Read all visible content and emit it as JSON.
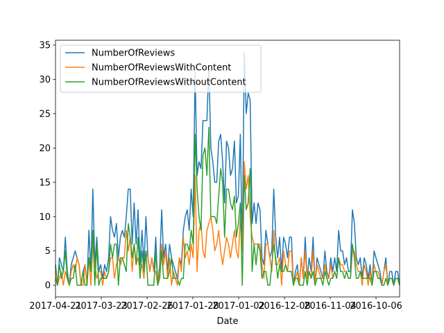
{
  "chart_data": {
    "type": "line",
    "xlabel": "Date",
    "ylabel": "",
    "title": "",
    "x_reversed": true,
    "xticks": [
      "2017-04-21",
      "2017-03-23",
      "2017-02-26",
      "2017-01-28",
      "2017-01-02",
      "2016-12-08",
      "2016-11-04",
      "2016-10-06"
    ],
    "ylim": [
      -1.7,
      35.7
    ],
    "yticks": [
      0,
      5,
      10,
      15,
      20,
      25,
      30,
      35
    ],
    "grid": false,
    "legend": "top-left",
    "series": [
      {
        "name": "NumberOfReviews",
        "color": "#1f77b4",
        "values": [
          3,
          0,
          4,
          3,
          2,
          7,
          2,
          0,
          3,
          4,
          5,
          4,
          3,
          0,
          2,
          3,
          0,
          8,
          2,
          14,
          3,
          7,
          2,
          3,
          1,
          3,
          2,
          4,
          10,
          8,
          7,
          9,
          4,
          7,
          8,
          7,
          10,
          14,
          14,
          6,
          12,
          6,
          11,
          3,
          8,
          3,
          10,
          4,
          2,
          4,
          2,
          7,
          0,
          3,
          11,
          4,
          6,
          2,
          6,
          4,
          3,
          2,
          1,
          4,
          3,
          8,
          10,
          11,
          8,
          14,
          10,
          31,
          16,
          18,
          17,
          24,
          24,
          24,
          32,
          20,
          18,
          15,
          15,
          21,
          22,
          18,
          12,
          21,
          20,
          16,
          17,
          21,
          12,
          13,
          22,
          5,
          34,
          25,
          28,
          27,
          9,
          12,
          9,
          12,
          11,
          4,
          3,
          8,
          6,
          4,
          5,
          14,
          7,
          4,
          7,
          2,
          7,
          6,
          4,
          7,
          7,
          0,
          2,
          3,
          0,
          4,
          1,
          7,
          1,
          4,
          2,
          7,
          0,
          4,
          3,
          2,
          1,
          5,
          2,
          1,
          4,
          2,
          4,
          2,
          8,
          5,
          5,
          3,
          4,
          2,
          2,
          11,
          9,
          4,
          3,
          4,
          1,
          4,
          3,
          1,
          3,
          0,
          5,
          4,
          3,
          2,
          0,
          2,
          4,
          0,
          2,
          2,
          0,
          2,
          2,
          0
        ]
      },
      {
        "name": "NumberOfReviewsWithContent",
        "color": "#ff7f0e",
        "values": [
          2,
          0,
          1,
          2,
          0,
          2,
          1,
          0,
          2,
          3,
          2,
          4,
          3,
          0,
          0,
          3,
          0,
          4,
          0,
          6,
          3,
          1,
          2,
          2,
          0,
          2,
          1,
          2,
          4,
          4,
          1,
          3,
          4,
          3,
          4,
          4,
          8,
          5,
          7,
          2,
          6,
          3,
          4,
          2,
          3,
          1,
          5,
          4,
          2,
          4,
          2,
          2,
          0,
          2,
          6,
          3,
          5,
          1,
          4,
          0,
          2,
          1,
          0,
          4,
          2,
          7,
          4,
          5,
          3,
          6,
          4,
          16,
          2,
          8,
          9,
          5,
          4,
          8,
          9,
          10,
          8,
          5,
          6,
          8,
          5,
          3,
          5,
          7,
          6,
          4,
          6,
          8,
          5,
          4,
          10,
          5,
          18,
          14,
          16,
          10,
          7,
          6,
          6,
          6,
          6,
          3,
          1,
          6,
          6,
          4,
          2,
          8,
          3,
          3,
          4,
          0,
          5,
          3,
          2,
          5,
          5,
          0,
          1,
          2,
          0,
          4,
          1,
          5,
          1,
          2,
          1,
          5,
          0,
          3,
          2,
          1,
          1,
          3,
          1,
          1,
          3,
          1,
          2,
          1,
          4,
          3,
          3,
          2,
          2,
          1,
          1,
          5,
          5,
          3,
          2,
          2,
          0,
          3,
          2,
          0,
          2,
          0,
          3,
          2,
          2,
          1,
          0,
          2,
          3,
          0,
          1,
          1,
          0,
          1,
          1,
          0
        ]
      },
      {
        "name": "NumberOfReviewsWithoutContent",
        "color": "#2ca02c",
        "values": [
          1,
          0,
          3,
          1,
          2,
          5,
          1,
          0,
          1,
          1,
          3,
          0,
          0,
          0,
          2,
          0,
          0,
          4,
          2,
          8,
          0,
          6,
          0,
          1,
          1,
          1,
          1,
          2,
          6,
          4,
          6,
          6,
          0,
          4,
          4,
          3,
          2,
          9,
          7,
          4,
          6,
          3,
          7,
          1,
          5,
          2,
          5,
          0,
          0,
          0,
          0,
          5,
          0,
          1,
          5,
          1,
          1,
          1,
          2,
          4,
          1,
          1,
          1,
          0,
          1,
          1,
          6,
          6,
          5,
          8,
          6,
          22,
          14,
          10,
          8,
          19,
          20,
          16,
          23,
          10,
          10,
          10,
          9,
          13,
          17,
          15,
          7,
          14,
          14,
          12,
          11,
          13,
          7,
          9,
          12,
          0,
          16,
          11,
          12,
          17,
          2,
          6,
          3,
          6,
          5,
          1,
          2,
          2,
          0,
          0,
          3,
          6,
          4,
          1,
          3,
          2,
          2,
          3,
          2,
          2,
          2,
          0,
          1,
          1,
          0,
          0,
          0,
          2,
          0,
          2,
          1,
          2,
          0,
          1,
          1,
          1,
          0,
          2,
          1,
          0,
          1,
          1,
          2,
          1,
          4,
          2,
          2,
          1,
          2,
          1,
          1,
          6,
          4,
          1,
          1,
          2,
          1,
          1,
          1,
          1,
          1,
          0,
          2,
          2,
          1,
          1,
          0,
          0,
          1,
          0,
          1,
          1,
          0,
          1,
          1,
          0
        ]
      }
    ]
  }
}
